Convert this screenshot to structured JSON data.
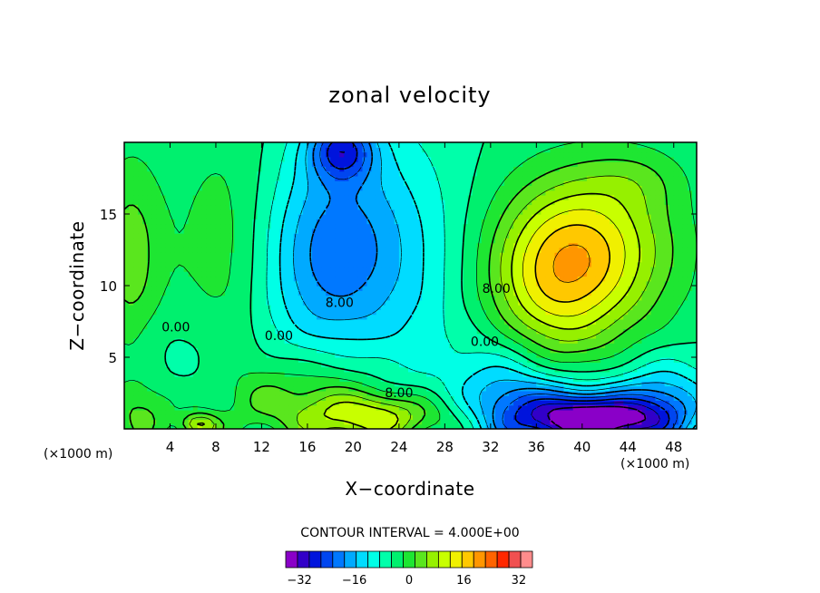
{
  "chart_data": {
    "type": "heatmap",
    "title": "zonal velocity",
    "xlabel": "X−coordinate",
    "ylabel": "Z−coordinate",
    "x_unit_left": "(×1000 m)",
    "x_unit_right": "(×1000 m)",
    "xlim": [
      0,
      50
    ],
    "ylim": [
      0,
      20
    ],
    "xticks": [
      4,
      8,
      12,
      16,
      20,
      24,
      28,
      32,
      36,
      40,
      44,
      48
    ],
    "yticks": [
      5,
      10,
      15
    ],
    "contour_interval_text": "CONTOUR INTERVAL = 4.000E+00",
    "contour_labels": [
      {
        "text": "0.00",
        "x": 4.5,
        "z": 6.8
      },
      {
        "text": "0.00",
        "x": 13.5,
        "z": 6.2
      },
      {
        "text": "0.00",
        "x": 31.5,
        "z": 5.8
      },
      {
        "text": "8.00",
        "x": 18.8,
        "z": 8.5
      },
      {
        "text": "8.00",
        "x": 24.0,
        "z": 2.2
      },
      {
        "text": "8.00",
        "x": 32.5,
        "z": 9.5
      }
    ],
    "colorbar": {
      "min": -36,
      "max": 36,
      "step": 4,
      "tick_labels": [
        "−32",
        "−16",
        "0",
        "16",
        "32"
      ],
      "tick_values": [
        -32,
        -16,
        0,
        16,
        32
      ],
      "colors": [
        "#8a00c8",
        "#3200c8",
        "#0014dc",
        "#0046f0",
        "#0078ff",
        "#00aaff",
        "#00dcff",
        "#00ffe6",
        "#00ffaa",
        "#00f06e",
        "#1ee632",
        "#5ae61e",
        "#96f000",
        "#c8ff00",
        "#f0f000",
        "#ffc800",
        "#ff9600",
        "#ff6400",
        "#ff2800",
        "#f05050",
        "#ff8c8c"
      ]
    },
    "field_centers": [
      {
        "x": 0.5,
        "z": 12,
        "value": 10,
        "sx": 2.0,
        "sz": 5
      },
      {
        "x": 9,
        "z": 12,
        "value": 7,
        "sx": 3.5,
        "sz": 7
      },
      {
        "x": 5.5,
        "z": 5.5,
        "value": -3,
        "sx": 3.5,
        "sz": 2.5
      },
      {
        "x": 8,
        "z": 3,
        "value": 0,
        "sx": 3,
        "sz": 2
      },
      {
        "x": 1.5,
        "z": 1.2,
        "value": 8,
        "sx": 2,
        "sz": 1.5
      },
      {
        "x": 19,
        "z": 13,
        "value": -14,
        "sx": 4,
        "sz": 5
      },
      {
        "x": 19,
        "z": 19.5,
        "value": -20,
        "sx": 2,
        "sz": 1.5
      },
      {
        "x": 25,
        "z": 11,
        "value": -6,
        "sx": 4,
        "sz": 7
      },
      {
        "x": 15,
        "z": 10,
        "value": -6,
        "sx": 4,
        "sz": 6
      },
      {
        "x": 17,
        "z": 2.5,
        "value": 10,
        "sx": 4,
        "sz": 2.2
      },
      {
        "x": 22,
        "z": 0.8,
        "value": 18,
        "sx": 4.5,
        "sz": 1.2
      },
      {
        "x": 6.5,
        "z": 0.3,
        "value": 16,
        "sx": 1.2,
        "sz": 0.6
      },
      {
        "x": 12,
        "z": 2,
        "value": 4,
        "sx": 2,
        "sz": 1.5
      },
      {
        "x": 41,
        "z": 12.5,
        "value": 20,
        "sx": 5,
        "sz": 4
      },
      {
        "x": 37,
        "z": 10,
        "value": 14,
        "sx": 4,
        "sz": 4
      },
      {
        "x": 45,
        "z": 17.5,
        "value": 4,
        "sx": 3,
        "sz": 1.5
      },
      {
        "x": 42,
        "z": 0.6,
        "value": -30,
        "sx": 4,
        "sz": 1.2
      },
      {
        "x": 37,
        "z": 1,
        "value": -18,
        "sx": 4,
        "sz": 1.8
      },
      {
        "x": 47,
        "z": 2,
        "value": -14,
        "sx": 3,
        "sz": 2
      },
      {
        "x": 33,
        "z": 3,
        "value": -10,
        "sx": 3,
        "sz": 2.5
      }
    ]
  }
}
